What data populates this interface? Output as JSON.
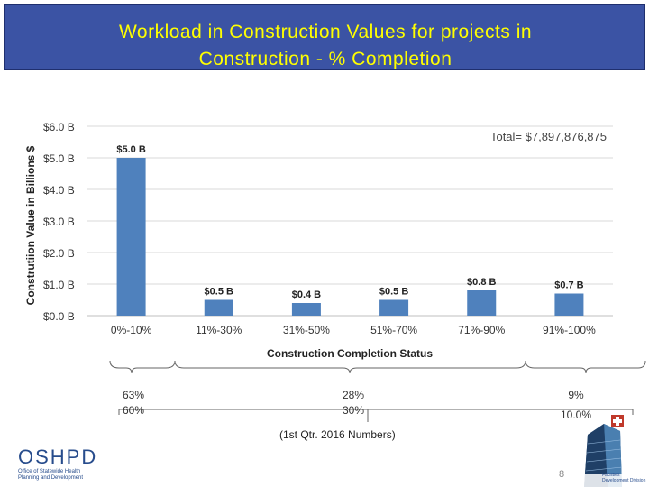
{
  "header": {
    "title_line1": "Workload in Construction Values for projects in",
    "title_line2": "Construction - % Completion"
  },
  "chart_data": {
    "type": "bar",
    "categories": [
      "0%-10%",
      "11%-30%",
      "31%-50%",
      "51%-70%",
      "71%-90%",
      "91%-100%"
    ],
    "values": [
      5.0,
      0.5,
      0.4,
      0.5,
      0.8,
      0.7
    ],
    "data_labels": [
      "$5.0 B",
      "$0.5 B",
      "$0.4 B",
      "$0.5 B",
      "$0.8 B",
      "$0.7 B"
    ],
    "ylabel": "Construtiion Value in Billions $",
    "xlabel": "Construction Completion Status",
    "yticks": [
      "$0.0 B",
      "$1.0 B",
      "$2.0 B",
      "$3.0 B",
      "$4.0 B",
      "$5.0 B",
      "$6.0 B"
    ],
    "ylim": [
      0,
      6
    ],
    "grid": true,
    "annotation": "Total= $7,897,876,875",
    "bar_color": "#4f81bd"
  },
  "groups": [
    {
      "line1": "63%",
      "line2": "60%"
    },
    {
      "line1": "28%",
      "line2": "30%"
    },
    {
      "line1": "9%",
      "line2": "10.0%"
    }
  ],
  "footnote": "(1st Qtr. 2016 Numbers)",
  "logo": {
    "name": "OSHPD",
    "subtitle": "Office of Statewide Health Planning and Development"
  },
  "building": {
    "caption": "Facilities Development Division"
  },
  "page_number": "8",
  "colors": {
    "title_bg": "#3b53a4",
    "title_text": "#ffff00"
  }
}
